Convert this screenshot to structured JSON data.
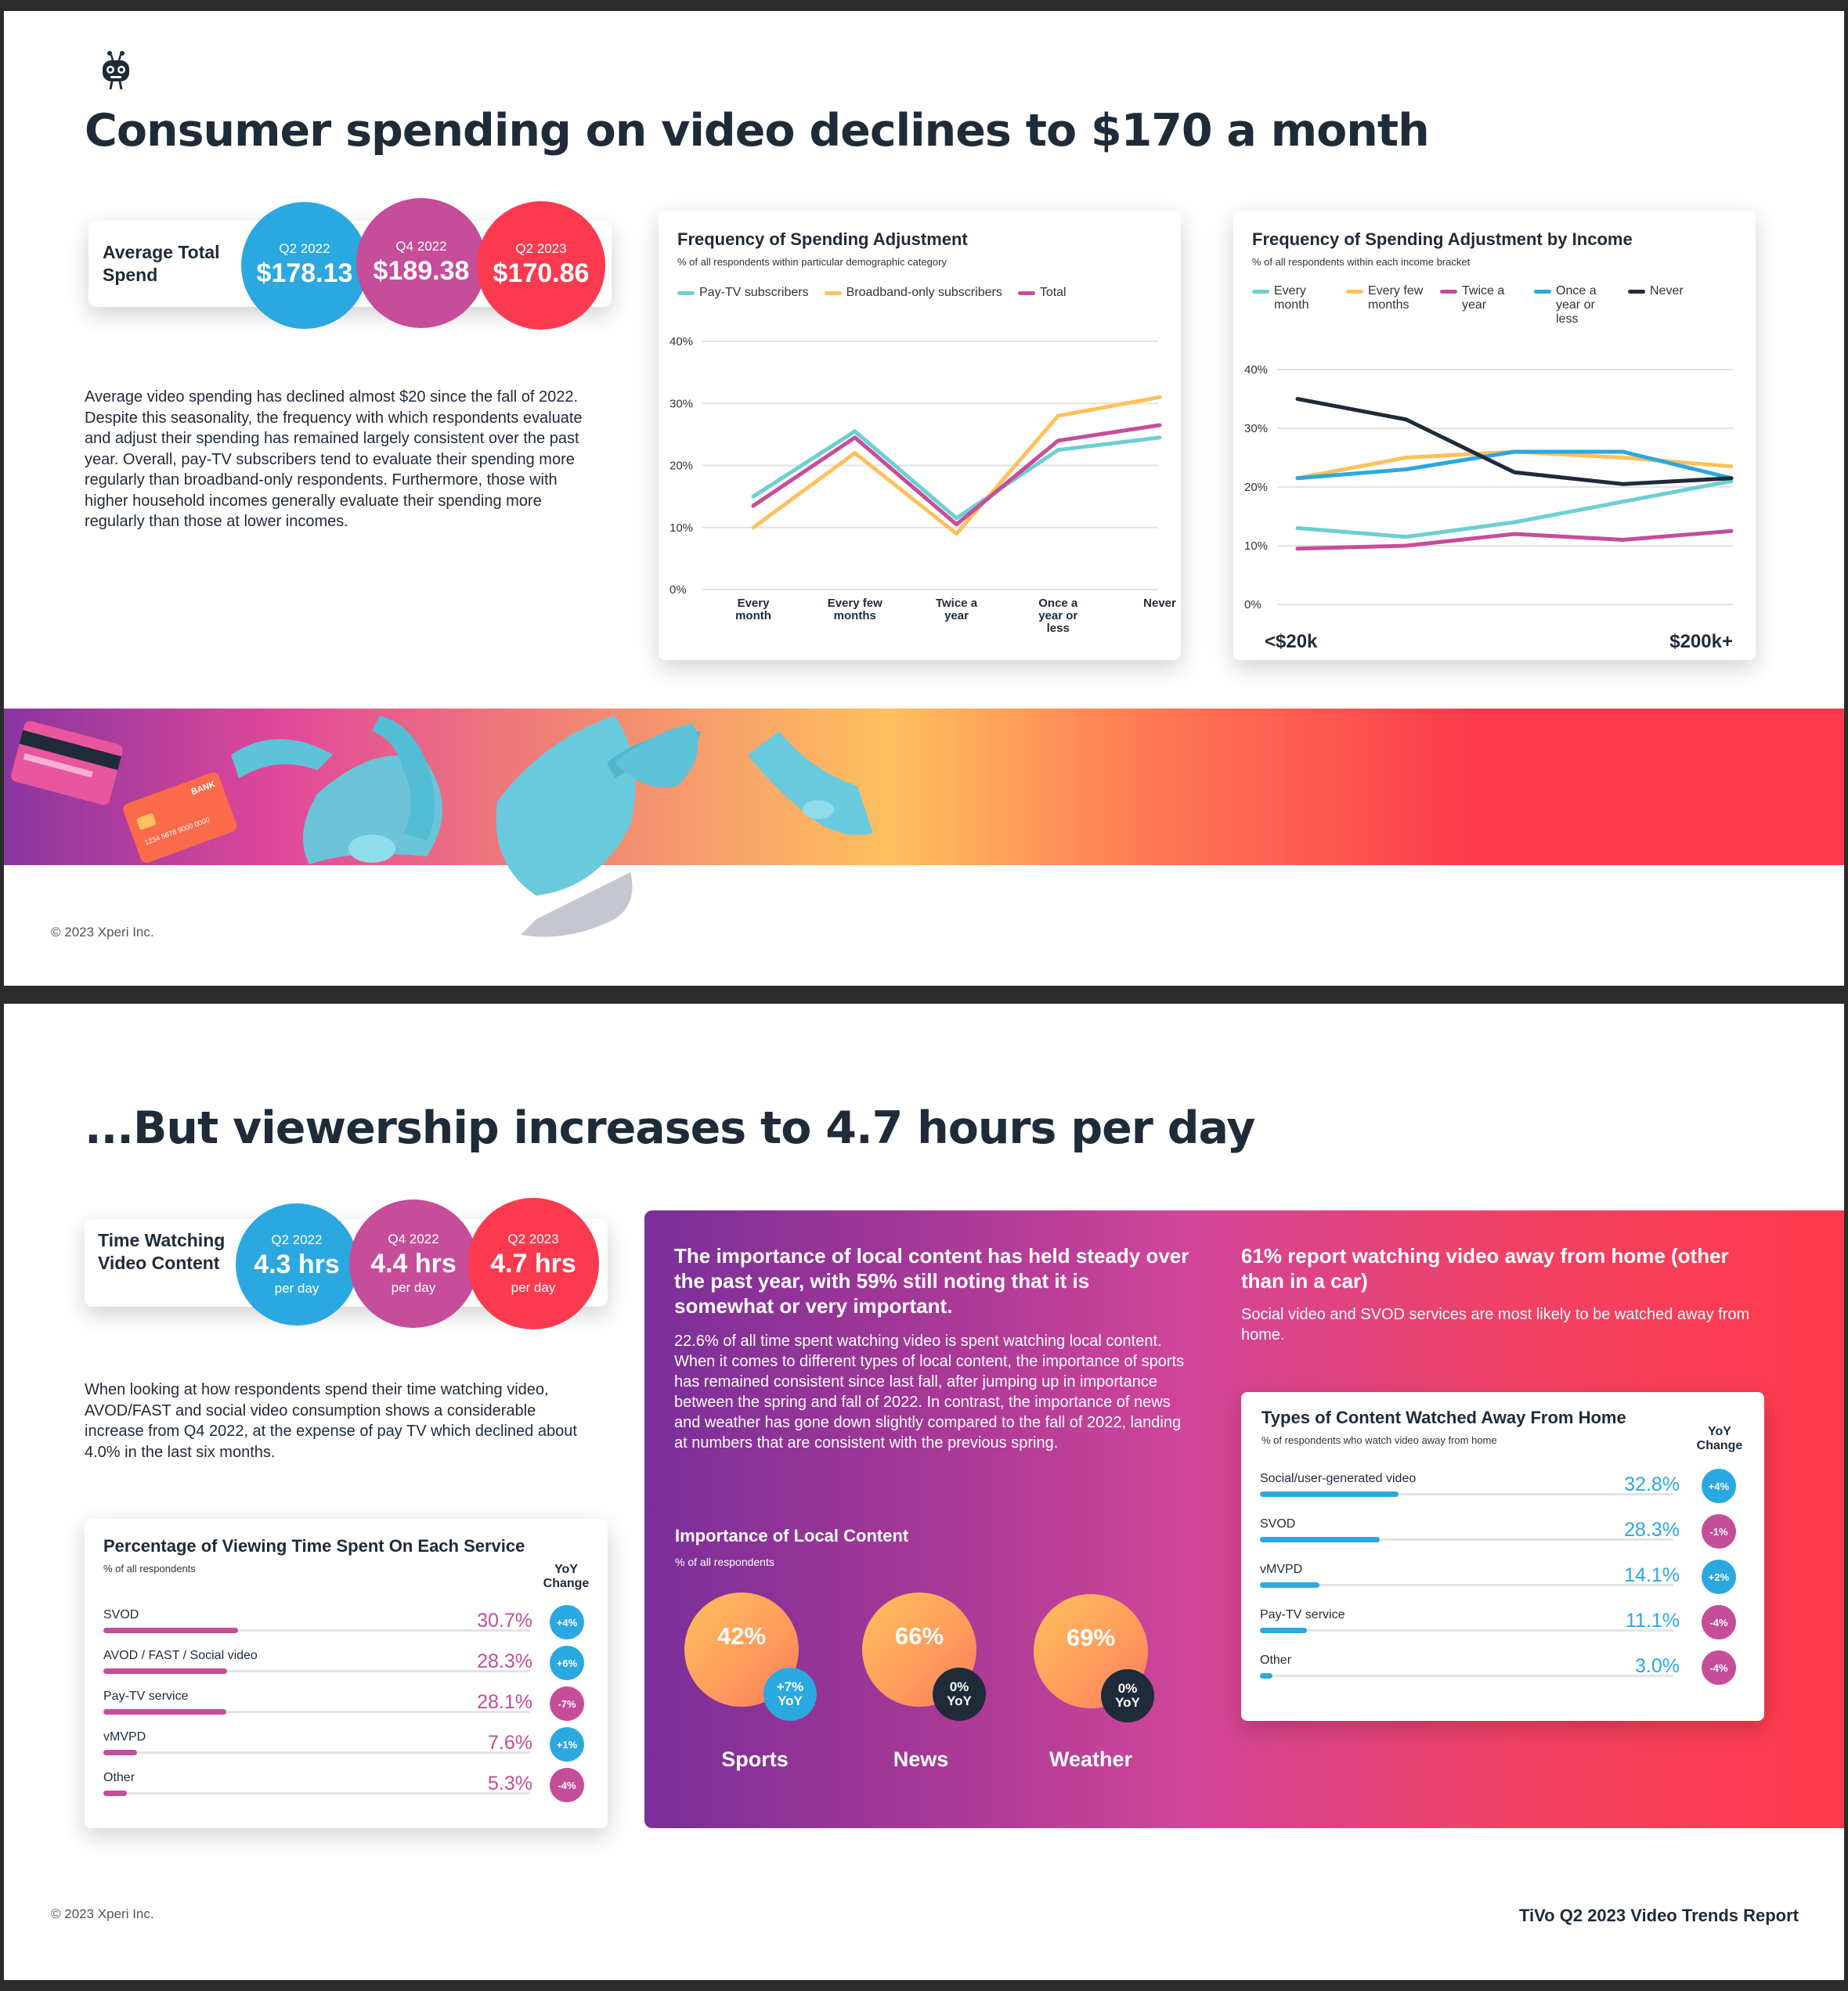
{
  "page1": {
    "title": "Consumer spending on video declines to $170 a month",
    "spend": {
      "label": "Average Total Spend",
      "items": [
        {
          "quarter": "Q2 2022",
          "value": "$178.13"
        },
        {
          "quarter": "Q4 2022",
          "value": "$189.38"
        },
        {
          "quarter": "Q2 2023",
          "value": "$170.86"
        }
      ]
    },
    "paragraph": "Average video spending has declined almost $20 since the fall of 2022. Despite this seasonality, the frequency with which respondents evaluate and adjust their spending has remained largely consistent over the past year. Overall, pay-TV subscribers tend to evaluate their spending more regularly than broadband-only respondents. Furthermore, those with higher household incomes generally evaluate their spending more regularly than those at lower incomes.",
    "copyright": "© 2023 Xperi Inc.",
    "cards": {
      "bank_label": "BANK",
      "card_number": "1234 5678 9000 0000"
    }
  },
  "chart_data": [
    {
      "type": "line",
      "title": "Frequency of Spending Adjustment",
      "subtitle": "% of all respondents within particular demographic category",
      "categories": [
        "Every month",
        "Every few months",
        "Twice a year",
        "Once a year or less",
        "Never"
      ],
      "series": [
        {
          "name": "Pay-TV subscribers",
          "color": "#6ecfd1",
          "values": [
            15,
            25.5,
            11.5,
            22.5,
            24.5
          ]
        },
        {
          "name": "Broadband-only subscribers",
          "color": "#fdc15d",
          "values": [
            10,
            22,
            9,
            28,
            31
          ]
        },
        {
          "name": "Total",
          "color": "#c54d9a",
          "values": [
            13.5,
            24.5,
            10.5,
            24,
            26.5
          ]
        }
      ],
      "yticks": [
        "0%",
        "10%",
        "20%",
        "30%",
        "40%"
      ],
      "ylim": [
        0,
        40
      ]
    },
    {
      "type": "line",
      "title": "Frequency of Spending Adjustment by Income",
      "subtitle": "% of all respondents within each income bracket",
      "x_start_label": "<$20k",
      "x_end_label": "$200k+",
      "series": [
        {
          "name": "Every month",
          "color": "#6ecfd1",
          "values": [
            13,
            11.5,
            14,
            17.5,
            21
          ]
        },
        {
          "name": "Every few months",
          "color": "#fdc15d",
          "values": [
            21.5,
            25,
            26,
            25,
            23.5
          ]
        },
        {
          "name": "Twice a year",
          "color": "#c54d9a",
          "values": [
            9.5,
            10,
            12,
            11,
            12.5
          ]
        },
        {
          "name": "Once a year or less",
          "color": "#2ba8df",
          "values": [
            21.5,
            23,
            26,
            26,
            21.5
          ]
        },
        {
          "name": "Never",
          "color": "#1f2b38",
          "values": [
            35,
            31.5,
            22.5,
            20.5,
            21.5
          ]
        }
      ],
      "yticks": [
        "0%",
        "10%",
        "20%",
        "30%",
        "40%"
      ],
      "ylim": [
        0,
        40
      ]
    }
  ],
  "page2": {
    "title": "...But viewership increases to 4.7 hours per day",
    "time": {
      "label": "Time Watching Video Content",
      "unit": "per day",
      "items": [
        {
          "quarter": "Q2 2022",
          "value": "4.3 hrs"
        },
        {
          "quarter": "Q4 2022",
          "value": "4.4 hrs"
        },
        {
          "quarter": "Q2 2023",
          "value": "4.7 hrs"
        }
      ]
    },
    "paragraph": "When looking at how respondents spend their time watching video, AVOD/FAST and social video consumption shows a considerable increase from Q4 2022, at the expense of pay TV which declined about 4.0% in the last six months.",
    "viewing": {
      "title": "Percentage of Viewing Time Spent On Each Service",
      "subtitle": "% of all respondents",
      "yoy_header": "YoY Change",
      "rows": [
        {
          "label": "SVOD",
          "value": "30.7%",
          "fraction": 0.307,
          "yoy": "+4%",
          "yoy_color": "#2ba8df"
        },
        {
          "label": "AVOD / FAST / Social video",
          "value": "28.3%",
          "fraction": 0.283,
          "yoy": "+6%",
          "yoy_color": "#2ba8df"
        },
        {
          "label": "Pay-TV service",
          "value": "28.1%",
          "fraction": 0.281,
          "yoy": "-7%",
          "yoy_color": "#c54d9a"
        },
        {
          "label": "vMVPD",
          "value": "7.6%",
          "fraction": 0.076,
          "yoy": "+1%",
          "yoy_color": "#2ba8df"
        },
        {
          "label": "Other",
          "value": "5.3%",
          "fraction": 0.053,
          "yoy": "-4%",
          "yoy_color": "#c54d9a"
        }
      ]
    },
    "local": {
      "heading": "The importance of local content has held steady over the past year, with 59% still noting that it is somewhat or very important.",
      "body": "22.6% of all time spent watching video is spent watching local content. When it comes to different types of local content, the importance of sports has remained consistent since last fall, after jumping up in importance between the spring and fall of 2022. In contrast, the importance of news and weather has gone down slightly compared to the fall of 2022, landing at numbers that are consistent with the previous spring.",
      "chart_title": "Importance of Local Content",
      "chart_subtitle": "% of all respondents",
      "items": [
        {
          "name": "Sports",
          "value": "42%",
          "yoy_top": "+7%",
          "yoy_bottom": "YoY",
          "badge_color": "#2ba8df"
        },
        {
          "name": "News",
          "value": "66%",
          "yoy_top": "0%",
          "yoy_bottom": "YoY",
          "badge_color": "#1f2b38"
        },
        {
          "name": "Weather",
          "value": "69%",
          "yoy_top": "0%",
          "yoy_bottom": "YoY",
          "badge_color": "#1f2b38"
        }
      ]
    },
    "away": {
      "heading": "61% report watching video away from home (other than in a car)",
      "body": "Social video and SVOD services are most likely to be watched away from home.",
      "title": "Types of Content Watched Away From Home",
      "subtitle": "% of respondents who watch video away from home",
      "yoy_header": "YoY Change",
      "rows": [
        {
          "label": "Social/user-generated video",
          "value": "32.8%",
          "fraction": 0.328,
          "yoy": "+4%",
          "yoy_color": "#2ba8df"
        },
        {
          "label": "SVOD",
          "value": "28.3%",
          "fraction": 0.283,
          "yoy": "-1%",
          "yoy_color": "#c54d9a"
        },
        {
          "label": "vMVPD",
          "value": "14.1%",
          "fraction": 0.141,
          "yoy": "+2%",
          "yoy_color": "#2ba8df"
        },
        {
          "label": "Pay-TV service",
          "value": "11.1%",
          "fraction": 0.111,
          "yoy": "-4%",
          "yoy_color": "#c54d9a"
        },
        {
          "label": "Other",
          "value": "3.0%",
          "fraction": 0.03,
          "yoy": "-4%",
          "yoy_color": "#c54d9a"
        }
      ]
    },
    "copyright": "© 2023 Xperi Inc.",
    "report_name": "TiVo Q2 2023 Video Trends Report"
  }
}
